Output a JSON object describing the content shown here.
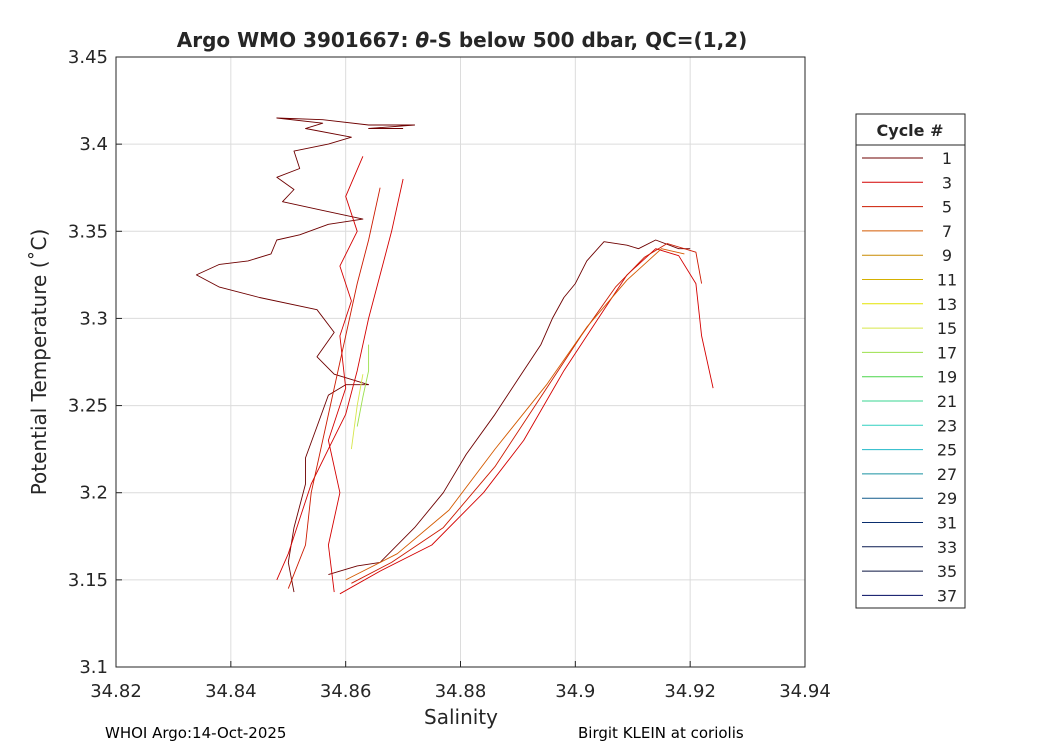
{
  "chart_data": {
    "type": "line",
    "title": "Argo WMO 3901667: θ-S below 500 dbar,  QC=(1,2)",
    "title_parts": {
      "prefix": "Argo WMO 3901667: ",
      "theta": "θ",
      "suffix": "-S below 500 dbar,  QC=(1,2)"
    },
    "xlabel": "Salinity",
    "ylabel": "Potential Temperature (˚C)",
    "xlim": [
      34.82,
      34.94
    ],
    "ylim": [
      3.1,
      3.45
    ],
    "xticks": [
      "34.82",
      "34.84",
      "34.86",
      "34.88",
      "34.9",
      "34.92",
      "34.94"
    ],
    "yticks": [
      "3.1",
      "3.15",
      "3.2",
      "3.25",
      "3.3",
      "3.35",
      "3.4",
      "3.45"
    ],
    "grid": true,
    "legend": {
      "title": "Cycle #",
      "placement": "right",
      "entries": [
        {
          "label": "1",
          "color": "#6e0000"
        },
        {
          "label": "3",
          "color": "#d40000"
        },
        {
          "label": "5",
          "color": "#cc1a00"
        },
        {
          "label": "7",
          "color": "#d45a00"
        },
        {
          "label": "9",
          "color": "#c88a00"
        },
        {
          "label": "11",
          "color": "#d4b000"
        },
        {
          "label": "13",
          "color": "#e4e400"
        },
        {
          "label": "15",
          "color": "#d6e64a"
        },
        {
          "label": "17",
          "color": "#9be04c"
        },
        {
          "label": "19",
          "color": "#4ad64a"
        },
        {
          "label": "21",
          "color": "#3ad690"
        },
        {
          "label": "23",
          "color": "#30d0c0"
        },
        {
          "label": "25",
          "color": "#20b8c8"
        },
        {
          "label": "27",
          "color": "#1890a0"
        },
        {
          "label": "29",
          "color": "#105a8c"
        },
        {
          "label": "31",
          "color": "#0a2e6e"
        },
        {
          "label": "33",
          "color": "#0a1a50"
        },
        {
          "label": "35",
          "color": "#0a1440"
        },
        {
          "label": "37",
          "color": "#000a60"
        }
      ]
    },
    "series": [
      {
        "color": "#6e0000",
        "points": [
          [
            34.851,
            3.143
          ],
          [
            34.85,
            3.16
          ],
          [
            34.851,
            3.18
          ],
          [
            34.853,
            3.205
          ],
          [
            34.853,
            3.22
          ],
          [
            34.855,
            3.238
          ],
          [
            34.857,
            3.256
          ],
          [
            34.86,
            3.262
          ],
          [
            34.864,
            3.262
          ],
          [
            34.858,
            3.268
          ],
          [
            34.855,
            3.278
          ],
          [
            34.858,
            3.292
          ],
          [
            34.855,
            3.305
          ],
          [
            34.845,
            3.312
          ],
          [
            34.838,
            3.318
          ],
          [
            34.834,
            3.325
          ],
          [
            34.838,
            3.331
          ],
          [
            34.843,
            3.333
          ],
          [
            34.847,
            3.337
          ],
          [
            34.848,
            3.345
          ],
          [
            34.852,
            3.348
          ],
          [
            34.857,
            3.354
          ],
          [
            34.863,
            3.357
          ],
          [
            34.856,
            3.362
          ],
          [
            34.849,
            3.367
          ],
          [
            34.851,
            3.374
          ],
          [
            34.848,
            3.381
          ],
          [
            34.852,
            3.386
          ],
          [
            34.851,
            3.396
          ],
          [
            34.857,
            3.4
          ],
          [
            34.861,
            3.404
          ],
          [
            34.853,
            3.409
          ],
          [
            34.856,
            3.412
          ],
          [
            34.848,
            3.415
          ],
          [
            34.856,
            3.414
          ],
          [
            34.864,
            3.411
          ],
          [
            34.872,
            3.411
          ],
          [
            34.864,
            3.409
          ],
          [
            34.87,
            3.409
          ]
        ]
      },
      {
        "color": "#6e0000",
        "points": [
          [
            34.857,
            3.153
          ],
          [
            34.862,
            3.158
          ],
          [
            34.866,
            3.16
          ],
          [
            34.872,
            3.18
          ],
          [
            34.877,
            3.2
          ],
          [
            34.881,
            3.222
          ],
          [
            34.886,
            3.245
          ],
          [
            34.89,
            3.265
          ],
          [
            34.894,
            3.285
          ],
          [
            34.896,
            3.3
          ],
          [
            34.898,
            3.312
          ],
          [
            34.9,
            3.32
          ],
          [
            34.902,
            3.333
          ],
          [
            34.905,
            3.344
          ],
          [
            34.909,
            3.342
          ],
          [
            34.911,
            3.34
          ],
          [
            34.914,
            3.345
          ],
          [
            34.918,
            3.34
          ],
          [
            34.92,
            3.34
          ]
        ]
      },
      {
        "color": "#d40000",
        "points": [
          [
            34.848,
            3.15
          ],
          [
            34.85,
            3.165
          ],
          [
            34.852,
            3.185
          ],
          [
            34.854,
            3.205
          ],
          [
            34.857,
            3.225
          ],
          [
            34.86,
            3.245
          ],
          [
            34.862,
            3.27
          ],
          [
            34.864,
            3.3
          ],
          [
            34.866,
            3.325
          ],
          [
            34.868,
            3.35
          ],
          [
            34.87,
            3.38
          ]
        ]
      },
      {
        "color": "#cc1a00",
        "points": [
          [
            34.85,
            3.145
          ],
          [
            34.853,
            3.17
          ],
          [
            34.854,
            3.2
          ],
          [
            34.856,
            3.23
          ],
          [
            34.858,
            3.26
          ],
          [
            34.86,
            3.29
          ],
          [
            34.862,
            3.32
          ],
          [
            34.864,
            3.345
          ],
          [
            34.866,
            3.375
          ]
        ]
      },
      {
        "color": "#d40000",
        "points": [
          [
            34.858,
            3.143
          ],
          [
            34.857,
            3.17
          ],
          [
            34.859,
            3.2
          ],
          [
            34.857,
            3.23
          ],
          [
            34.86,
            3.26
          ],
          [
            34.859,
            3.29
          ],
          [
            34.861,
            3.31
          ],
          [
            34.859,
            3.33
          ],
          [
            34.862,
            3.35
          ],
          [
            34.86,
            3.37
          ],
          [
            34.863,
            3.393
          ]
        ]
      },
      {
        "color": "#d40000",
        "points": [
          [
            34.859,
            3.142
          ],
          [
            34.866,
            3.155
          ],
          [
            34.875,
            3.17
          ],
          [
            34.884,
            3.2
          ],
          [
            34.891,
            3.23
          ],
          [
            34.898,
            3.27
          ],
          [
            34.904,
            3.3
          ],
          [
            34.909,
            3.325
          ],
          [
            34.914,
            3.34
          ],
          [
            34.918,
            3.336
          ],
          [
            34.921,
            3.32
          ],
          [
            34.922,
            3.29
          ],
          [
            34.924,
            3.26
          ]
        ]
      },
      {
        "color": "#cc1a00",
        "points": [
          [
            34.861,
            3.148
          ],
          [
            34.868,
            3.16
          ],
          [
            34.877,
            3.18
          ],
          [
            34.886,
            3.215
          ],
          [
            34.894,
            3.255
          ],
          [
            34.901,
            3.29
          ],
          [
            34.907,
            3.318
          ],
          [
            34.912,
            3.335
          ],
          [
            34.916,
            3.343
          ],
          [
            34.921,
            3.338
          ],
          [
            34.922,
            3.32
          ]
        ]
      },
      {
        "color": "#d45a00",
        "points": [
          [
            34.86,
            3.15
          ],
          [
            34.869,
            3.165
          ],
          [
            34.878,
            3.19
          ],
          [
            34.886,
            3.225
          ],
          [
            34.895,
            3.262
          ],
          [
            34.902,
            3.295
          ],
          [
            34.909,
            3.322
          ],
          [
            34.915,
            3.34
          ],
          [
            34.919,
            3.337
          ]
        ]
      },
      {
        "color": "#9be04c",
        "points": [
          [
            34.862,
            3.238
          ],
          [
            34.863,
            3.255
          ],
          [
            34.864,
            3.27
          ],
          [
            34.864,
            3.285
          ]
        ]
      },
      {
        "color": "#d6e64a",
        "points": [
          [
            34.861,
            3.225
          ],
          [
            34.862,
            3.25
          ],
          [
            34.863,
            3.268
          ]
        ]
      }
    ]
  },
  "footer": {
    "left": "WHOI Argo:14-Oct-2025",
    "right": "Birgit KLEIN at coriolis"
  }
}
